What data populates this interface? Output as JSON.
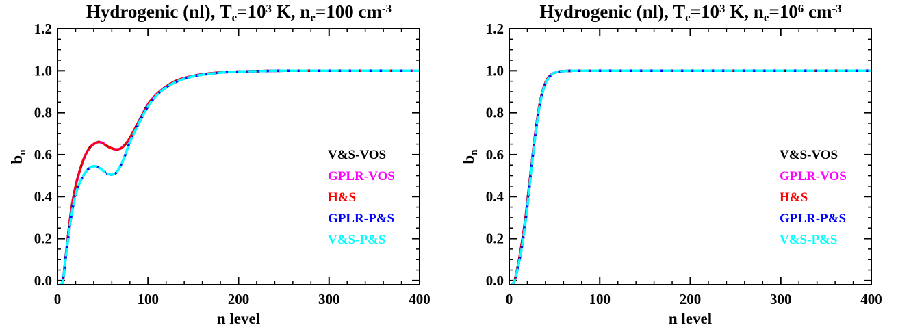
{
  "chart_data": [
    {
      "type": "line",
      "title": "Hydrogenic (nl), T_e=10^3 K, n_e=100 cm^-3",
      "title_parts": {
        "t1": "Hydrogenic (nl), T",
        "s1": "e",
        "t2": "=10",
        "p1": "3",
        "t3": " K, n",
        "s2": "e",
        "t4": "=100 cm",
        "p2": "-3"
      },
      "xlabel": "n level",
      "ylabel": "b",
      "ylabel_sub": "n",
      "xlim": [
        0,
        400
      ],
      "ylim": [
        -0.02,
        1.2
      ],
      "xticks": [
        0,
        100,
        200,
        300,
        400
      ],
      "xtick_labels": [
        "0",
        "100",
        "200",
        "300",
        "400"
      ],
      "yticks": [
        0.0,
        0.2,
        0.4,
        0.6,
        0.8,
        1.0,
        1.2
      ],
      "ytick_labels": [
        "0.0",
        "0.2",
        "0.4",
        "0.6",
        "0.8",
        "1.0",
        "1.2"
      ],
      "grid": false,
      "legend_placement": "middle-right",
      "legend": [
        "V&S-VOS",
        "GPLR-VOS",
        "H&S",
        "GPLR-P&S",
        "V&S-P&S"
      ],
      "series": [
        {
          "name": "V&S-VOS",
          "color": "#000000",
          "style": "solid",
          "x": [
            3,
            6,
            10,
            15,
            20,
            25,
            30,
            35,
            40,
            45,
            50,
            55,
            60,
            65,
            70,
            75,
            80,
            90,
            100,
            110,
            120,
            130,
            140,
            150,
            160,
            180,
            200,
            220,
            250,
            300,
            350,
            400
          ],
          "y": [
            -0.02,
            0.0,
            0.15,
            0.33,
            0.45,
            0.53,
            0.59,
            0.63,
            0.65,
            0.66,
            0.655,
            0.64,
            0.63,
            0.625,
            0.63,
            0.65,
            0.68,
            0.76,
            0.84,
            0.89,
            0.925,
            0.95,
            0.965,
            0.975,
            0.983,
            0.992,
            0.996,
            0.998,
            1.0,
            1.0,
            1.0,
            1.0
          ]
        },
        {
          "name": "GPLR-VOS",
          "color": "#ff00ff",
          "style": "dash",
          "x": [
            3,
            6,
            10,
            15,
            20,
            25,
            30,
            35,
            40,
            45,
            50,
            55,
            60,
            65,
            70,
            75,
            80,
            90,
            100,
            110,
            120,
            130,
            140,
            150,
            160,
            180,
            200,
            220,
            250,
            300,
            350,
            400
          ],
          "y": [
            -0.02,
            0.0,
            0.15,
            0.33,
            0.45,
            0.53,
            0.59,
            0.63,
            0.65,
            0.66,
            0.655,
            0.64,
            0.63,
            0.625,
            0.63,
            0.65,
            0.68,
            0.76,
            0.84,
            0.89,
            0.925,
            0.95,
            0.965,
            0.975,
            0.983,
            0.992,
            0.996,
            0.998,
            1.0,
            1.0,
            1.0,
            1.0
          ]
        },
        {
          "name": "H&S",
          "color": "#ff0000",
          "style": "dot",
          "x": [
            3,
            6,
            10,
            15,
            20,
            25,
            30,
            35,
            40,
            45,
            50,
            55,
            60,
            65,
            70,
            75,
            80,
            90,
            100,
            110,
            120,
            130,
            140,
            150,
            160,
            180,
            200,
            220,
            250,
            300,
            350,
            400
          ],
          "y": [
            -0.02,
            0.0,
            0.15,
            0.33,
            0.45,
            0.53,
            0.59,
            0.63,
            0.65,
            0.66,
            0.655,
            0.64,
            0.63,
            0.625,
            0.63,
            0.65,
            0.68,
            0.76,
            0.84,
            0.89,
            0.925,
            0.95,
            0.965,
            0.975,
            0.983,
            0.992,
            0.996,
            0.998,
            1.0,
            1.0,
            1.0,
            1.0
          ]
        },
        {
          "name": "GPLR-P&S",
          "color": "#0000ff",
          "style": "dashdot",
          "x": [
            3,
            6,
            10,
            15,
            20,
            25,
            30,
            35,
            40,
            45,
            50,
            55,
            60,
            65,
            70,
            75,
            80,
            90,
            100,
            110,
            120,
            130,
            140,
            150,
            160,
            180,
            200,
            220,
            250,
            300,
            350,
            400
          ],
          "y": [
            -0.02,
            0.0,
            0.14,
            0.3,
            0.41,
            0.47,
            0.51,
            0.535,
            0.545,
            0.54,
            0.525,
            0.51,
            0.505,
            0.515,
            0.55,
            0.6,
            0.66,
            0.75,
            0.83,
            0.885,
            0.92,
            0.945,
            0.962,
            0.973,
            0.981,
            0.991,
            0.996,
            0.998,
            1.0,
            1.0,
            1.0,
            1.0
          ]
        },
        {
          "name": "V&S-P&S",
          "color": "#00ffff",
          "style": "dash",
          "x": [
            3,
            6,
            10,
            15,
            20,
            25,
            30,
            35,
            40,
            45,
            50,
            55,
            60,
            65,
            70,
            75,
            80,
            90,
            100,
            110,
            120,
            130,
            140,
            150,
            160,
            180,
            200,
            220,
            250,
            300,
            350,
            400
          ],
          "y": [
            -0.02,
            0.0,
            0.14,
            0.3,
            0.41,
            0.47,
            0.51,
            0.535,
            0.545,
            0.54,
            0.525,
            0.51,
            0.505,
            0.515,
            0.55,
            0.6,
            0.66,
            0.75,
            0.83,
            0.885,
            0.92,
            0.945,
            0.962,
            0.973,
            0.981,
            0.991,
            0.996,
            0.998,
            1.0,
            1.0,
            1.0,
            1.0
          ]
        }
      ]
    },
    {
      "type": "line",
      "title": "Hydrogenic (nl), T_e=10^3 K, n_e=10^6 cm^-3",
      "title_parts": {
        "t1": "Hydrogenic (nl), T",
        "s1": "e",
        "t2": "=10",
        "p1": "3",
        "t3": " K, n",
        "s2": "e",
        "t4": "=10",
        "p3": "6",
        "t5": " cm",
        "p2": "-3"
      },
      "xlabel": "n level",
      "ylabel": "b",
      "ylabel_sub": "n",
      "xlim": [
        0,
        400
      ],
      "ylim": [
        -0.02,
        1.2
      ],
      "xticks": [
        0,
        100,
        200,
        300,
        400
      ],
      "xtick_labels": [
        "0",
        "100",
        "200",
        "300",
        "400"
      ],
      "yticks": [
        0.0,
        0.2,
        0.4,
        0.6,
        0.8,
        1.0,
        1.2
      ],
      "ytick_labels": [
        "0.0",
        "0.2",
        "0.4",
        "0.6",
        "0.8",
        "1.0",
        "1.2"
      ],
      "grid": false,
      "legend_placement": "middle-right",
      "legend": [
        "V&S-VOS",
        "GPLR-VOS",
        "H&S",
        "GPLR-P&S",
        "V&S-P&S"
      ],
      "series": [
        {
          "name": "V&S-VOS",
          "color": "#000000",
          "style": "solid",
          "x": [
            3,
            6,
            10,
            14,
            18,
            22,
            26,
            30,
            34,
            38,
            42,
            46,
            50,
            55,
            60,
            70,
            80,
            100,
            150,
            200,
            300,
            400
          ],
          "y": [
            -0.02,
            0.0,
            0.08,
            0.18,
            0.3,
            0.45,
            0.6,
            0.74,
            0.85,
            0.92,
            0.96,
            0.98,
            0.99,
            0.996,
            0.998,
            1.0,
            1.0,
            1.0,
            1.0,
            1.0,
            1.0,
            1.0
          ]
        },
        {
          "name": "GPLR-VOS",
          "color": "#ff00ff",
          "style": "dash",
          "x": [
            3,
            6,
            10,
            14,
            18,
            22,
            26,
            30,
            34,
            38,
            42,
            46,
            50,
            55,
            60,
            70,
            80,
            100,
            150,
            200,
            300,
            400
          ],
          "y": [
            -0.02,
            0.0,
            0.08,
            0.18,
            0.3,
            0.45,
            0.6,
            0.74,
            0.85,
            0.92,
            0.96,
            0.98,
            0.99,
            0.996,
            0.998,
            1.0,
            1.0,
            1.0,
            1.0,
            1.0,
            1.0,
            1.0
          ]
        },
        {
          "name": "H&S",
          "color": "#ff0000",
          "style": "dot",
          "x": [
            3,
            6,
            10,
            14,
            18,
            22,
            26,
            30,
            34,
            38,
            42,
            46,
            50,
            55,
            60,
            70,
            80,
            100,
            150,
            200,
            300,
            400
          ],
          "y": [
            -0.02,
            0.0,
            0.08,
            0.18,
            0.3,
            0.45,
            0.6,
            0.74,
            0.85,
            0.92,
            0.96,
            0.98,
            0.99,
            0.996,
            0.998,
            1.0,
            1.0,
            1.0,
            1.0,
            1.0,
            1.0,
            1.0
          ]
        },
        {
          "name": "GPLR-P&S",
          "color": "#0000ff",
          "style": "dashdot",
          "x": [
            3,
            6,
            10,
            14,
            18,
            22,
            26,
            30,
            34,
            38,
            42,
            46,
            50,
            55,
            60,
            70,
            80,
            100,
            150,
            200,
            300,
            400
          ],
          "y": [
            -0.02,
            0.0,
            0.07,
            0.16,
            0.28,
            0.43,
            0.59,
            0.73,
            0.84,
            0.915,
            0.955,
            0.978,
            0.99,
            0.996,
            0.998,
            1.0,
            1.0,
            1.0,
            1.0,
            1.0,
            1.0,
            1.0
          ]
        },
        {
          "name": "V&S-P&S",
          "color": "#00ffff",
          "style": "dash",
          "x": [
            3,
            6,
            10,
            14,
            18,
            22,
            26,
            30,
            34,
            38,
            42,
            46,
            50,
            55,
            60,
            70,
            80,
            100,
            150,
            200,
            300,
            400
          ],
          "y": [
            -0.02,
            0.0,
            0.07,
            0.16,
            0.28,
            0.43,
            0.59,
            0.73,
            0.84,
            0.915,
            0.955,
            0.978,
            0.99,
            0.996,
            0.998,
            1.0,
            1.0,
            1.0,
            1.0,
            1.0,
            1.0,
            1.0
          ]
        }
      ]
    }
  ]
}
